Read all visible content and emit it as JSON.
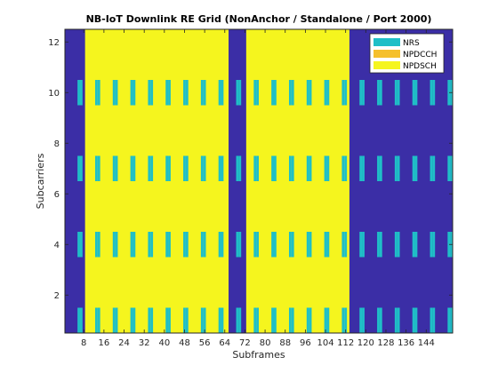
{
  "chart_data": {
    "type": "heatmap",
    "title": "NB-IoT Downlink RE Grid (NonAnchor / Standalone / Port 2000)",
    "xlabel": "Subframes",
    "ylabel": "Subcarriers",
    "xlim": [
      0.5,
      154.5
    ],
    "ylim": [
      0.5,
      12.5
    ],
    "xticks": [
      8,
      16,
      24,
      32,
      40,
      48,
      56,
      64,
      72,
      80,
      88,
      96,
      104,
      112,
      120,
      128,
      136,
      144
    ],
    "yticks": [
      2,
      4,
      6,
      8,
      10,
      12
    ],
    "grid": false,
    "legend_position": "top-right",
    "colors": {
      "background": "#3b2ea6",
      "NRS": "#1fbfc7",
      "NPDCCH": "#f5c02c",
      "NPDSCH": "#f5f51e",
      "axes_border": "#262626"
    },
    "legend": [
      "NRS",
      "NPDCCH",
      "NPDSCH"
    ],
    "npdsch_regions": [
      {
        "x_range": [
          8.5,
          65.5
        ],
        "y_range": [
          0.5,
          12.5
        ]
      },
      {
        "x_range": [
          72.5,
          113.5
        ],
        "y_range": [
          0.5,
          12.5
        ]
      }
    ],
    "nrs": {
      "rows": [
        1,
        4,
        7,
        10
      ],
      "x_range": [
        1,
        154
      ],
      "columns_per_14": [
        6,
        7,
        13,
        14
      ],
      "rows_alternate_offset": true
    }
  }
}
